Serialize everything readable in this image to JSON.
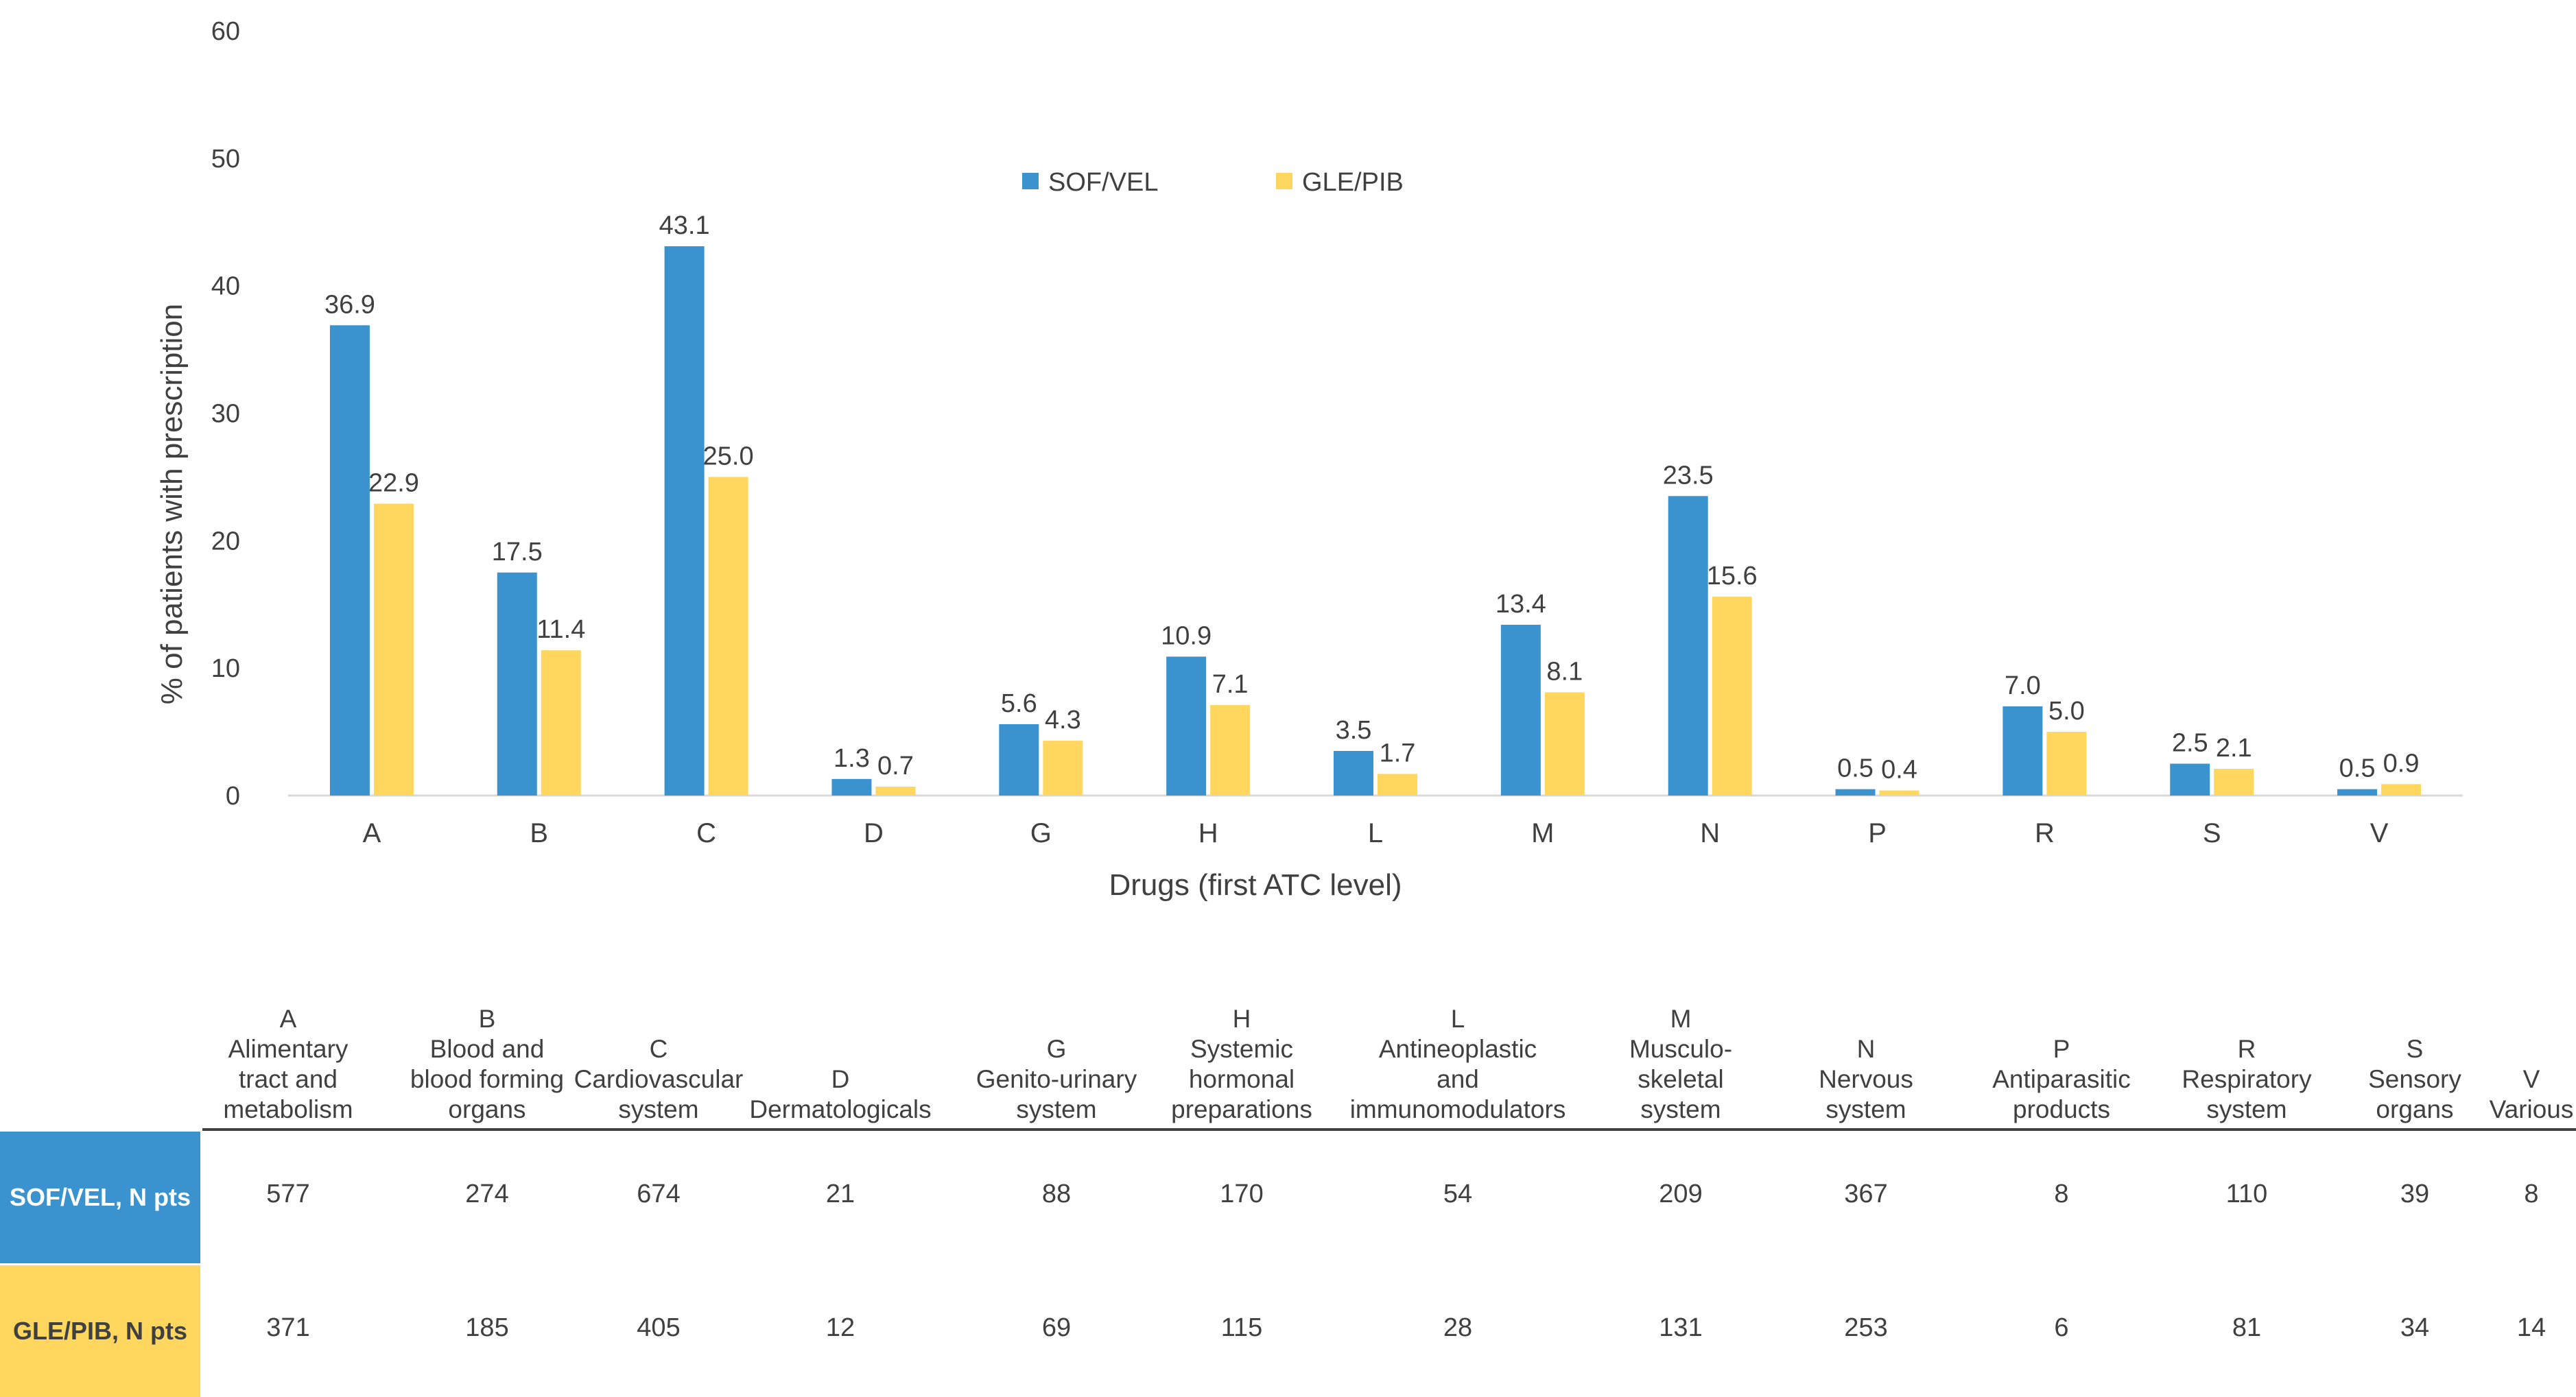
{
  "chart_data": {
    "type": "bar",
    "categories": [
      "A",
      "B",
      "C",
      "D",
      "G",
      "H",
      "L",
      "M",
      "N",
      "P",
      "R",
      "S",
      "V"
    ],
    "series": [
      {
        "name": "SOF/VEL",
        "color": "#3a93cf",
        "values": [
          36.9,
          17.5,
          43.1,
          1.3,
          5.6,
          10.9,
          3.5,
          13.4,
          23.5,
          0.5,
          7.0,
          2.5,
          0.5
        ]
      },
      {
        "name": "GLE/PIB",
        "color": "#ffd75e",
        "values": [
          22.9,
          11.4,
          25.0,
          0.7,
          4.3,
          7.1,
          1.7,
          8.1,
          15.6,
          0.4,
          5.0,
          2.1,
          0.9
        ]
      }
    ],
    "data_labels": [
      [
        "36.9",
        "17.5",
        "43.1",
        "1.3",
        "5.6",
        "10.9",
        "3.5",
        "13.4",
        "23.5",
        "0.5",
        "7.0",
        "2.5",
        "0.5"
      ],
      [
        "22.9",
        "11.4",
        "25.0",
        "0.7",
        "4.3",
        "7.1",
        "1.7",
        "8.1",
        "15.6",
        "0.4",
        "5.0",
        "2.1",
        "0.9"
      ]
    ],
    "title": "",
    "xlabel": "Drugs (first ATC level)",
    "ylabel": "% of patients with prescription",
    "ylim": [
      0,
      60
    ],
    "yticks": [
      "0",
      "10",
      "20",
      "30",
      "40",
      "50",
      "60"
    ],
    "grid": false,
    "legend_position": "top-center"
  },
  "table": {
    "headers": [
      [
        "A",
        "Alimentary",
        "tract and",
        "metabolism"
      ],
      [
        "B",
        "Blood and",
        "blood forming",
        "organs"
      ],
      [
        "C",
        "Cardiovascular",
        "system"
      ],
      [
        "D",
        "Dermatologicals"
      ],
      [
        "G",
        "Genito-urinary",
        "system"
      ],
      [
        "H",
        "Systemic",
        "hormonal",
        "preparations"
      ],
      [
        "L",
        "Antineoplastic and",
        "immunomodulators"
      ],
      [
        "M",
        "Musculo-",
        "skeletal",
        "system"
      ],
      [
        "N",
        "Nervous",
        "system"
      ],
      [
        "P",
        "Antiparasitic",
        "products"
      ],
      [
        "R",
        "Respiratory",
        "system"
      ],
      [
        "S",
        "Sensory",
        "organs"
      ],
      [
        "V",
        "Various"
      ]
    ],
    "rows": [
      {
        "label": "SOF/VEL, N pts",
        "values": [
          "577",
          "274",
          "674",
          "21",
          "88",
          "170",
          "54",
          "209",
          "367",
          "8",
          "110",
          "39",
          "8"
        ]
      },
      {
        "label": "GLE/PIB, N pts",
        "values": [
          "371",
          "185",
          "405",
          "12",
          "69",
          "115",
          "28",
          "131",
          "253",
          "6",
          "81",
          "34",
          "14"
        ]
      }
    ]
  }
}
